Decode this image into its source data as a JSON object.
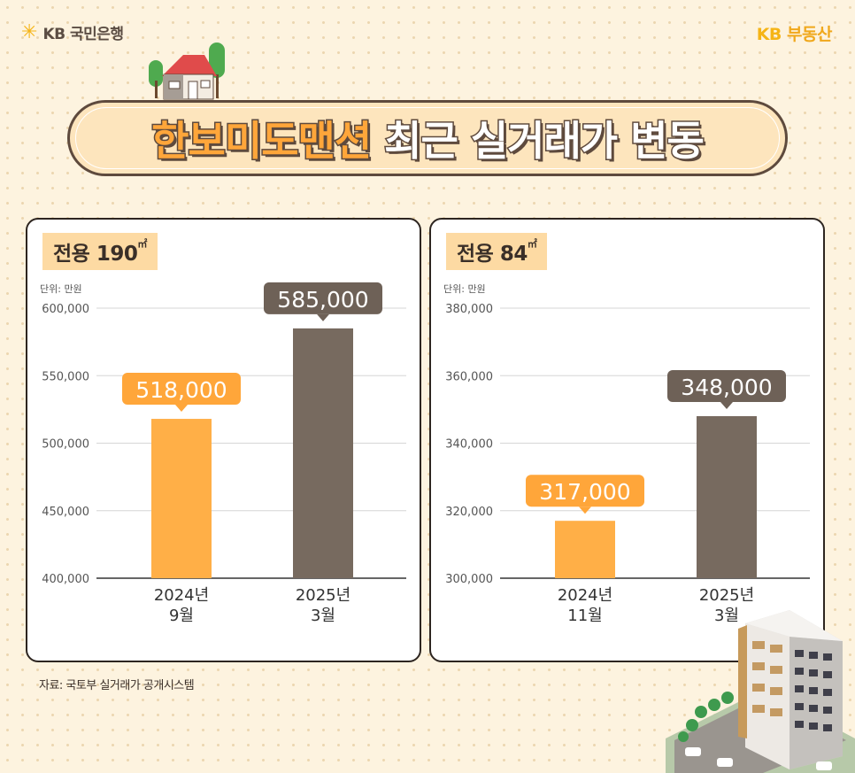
{
  "brand": {
    "left_logo": "KB 국민은행",
    "right_logo_kb": "KB",
    "right_logo_text": "부동산"
  },
  "title": {
    "highlight": "한보미도맨션",
    "rest": " 최근 실거래가 변동"
  },
  "source": "자료: 국토부 실거래가 공개시스템",
  "colors": {
    "orange": "#ffaf47",
    "brown": "#776a5f",
    "label_orange": "#ffa63a",
    "label_brown": "#6e6157"
  },
  "chart_data": [
    {
      "type": "bar",
      "area_label": "전용 190",
      "unit_label": "단위: 만원",
      "categories": [
        [
          "2024년",
          "9월"
        ],
        [
          "2025년",
          "3월"
        ]
      ],
      "values": [
        518000,
        585000
      ],
      "value_labels": [
        "518,000",
        "585,000"
      ],
      "ylim": [
        400000,
        600000
      ],
      "yticks": [
        "600,000",
        "550,000",
        "500,000",
        "450,000",
        "400,000"
      ],
      "grid": true
    },
    {
      "type": "bar",
      "area_label": "전용 84",
      "unit_label": "단위: 만원",
      "categories": [
        [
          "2024년",
          "11월"
        ],
        [
          "2025년",
          "3월"
        ]
      ],
      "values": [
        317000,
        348000
      ],
      "value_labels": [
        "317,000",
        "348,000"
      ],
      "ylim": [
        300000,
        380000
      ],
      "yticks": [
        "380,000",
        "360,000",
        "340,000",
        "320,000",
        "300,000"
      ],
      "grid": true
    }
  ]
}
